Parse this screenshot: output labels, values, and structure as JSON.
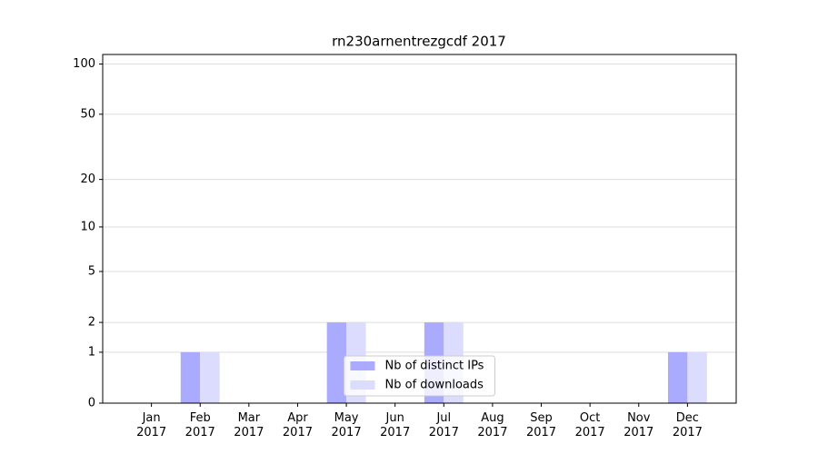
{
  "chart_data": {
    "type": "bar",
    "title": "rn230arnentrezgcdf 2017",
    "categories": [
      "Jan 2017",
      "Feb 2017",
      "Mar 2017",
      "Apr 2017",
      "May 2017",
      "Jun 2017",
      "Jul 2017",
      "Aug 2017",
      "Sep 2017",
      "Oct 2017",
      "Nov 2017",
      "Dec 2017"
    ],
    "series": [
      {
        "name": "Nb of distinct IPs",
        "color": "#aaaaff",
        "values": [
          0,
          1,
          0,
          0,
          2,
          0,
          2,
          0,
          0,
          0,
          0,
          1
        ]
      },
      {
        "name": "Nb of downloads",
        "color": "#dcdcff",
        "values": [
          0,
          1,
          0,
          0,
          2,
          0,
          2,
          0,
          0,
          0,
          0,
          1
        ]
      }
    ],
    "yscale": "log1p",
    "ylim": [
      0,
      114
    ],
    "yticks": [
      0,
      1,
      2,
      5,
      10,
      20,
      50,
      100
    ],
    "grid": true,
    "legend": "lower center"
  }
}
